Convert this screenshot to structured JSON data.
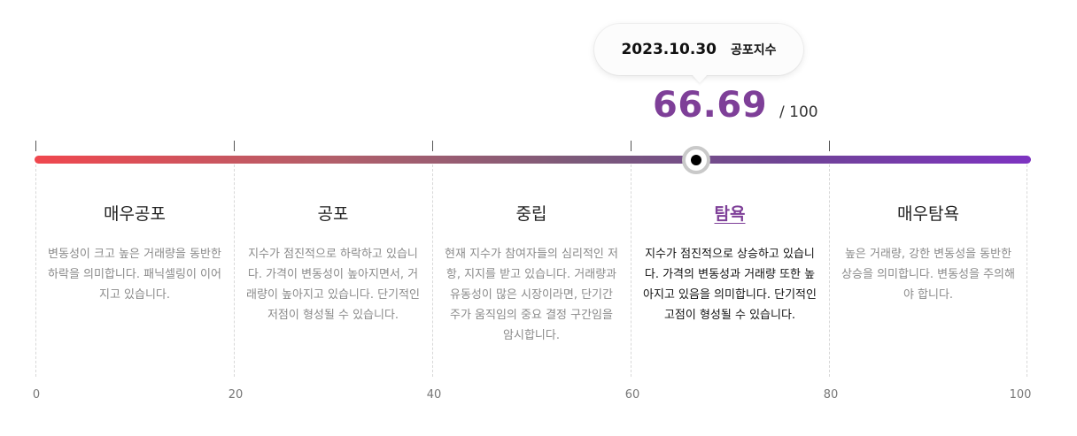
{
  "tooltip": {
    "date": "2023.10.30",
    "label": "공포지수"
  },
  "score": {
    "value": "66.69",
    "max": "/ 100",
    "value_numeric": 66.69
  },
  "gauge": {
    "colors": [
      "#f0474e",
      "#7d33c1"
    ],
    "accent": "#7e3f98",
    "zones": [
      {
        "title": "매우공포",
        "description": "변동성이 크고 높은 거래량을 동반한 하락을 의미합니다. 패닉셀링이 이어지고 있습니다."
      },
      {
        "title": "공포",
        "description": "지수가 점진적으로 하락하고 있습니다. 가격이 변동성이 높아지면서, 거래량이 높아지고 있습니다. 단기적인 저점이 형성될 수 있습니다."
      },
      {
        "title": "중립",
        "description": "현재 지수가 참여자들의 심리적인 저항, 지지를 받고 있습니다. 거래량과 유동성이 많은 시장이라면, 단기간 주가 움직임의 중요 결정 구간임을 암시합니다."
      },
      {
        "title": "탐욕",
        "description": "지수가 점진적으로 상승하고 있습니다. 가격의 변동성과 거래량 또한 높아지고 있음을 의미합니다. 단기적인 고점이 형성될 수 있습니다.",
        "active": true
      },
      {
        "title": "매우탐욕",
        "description": "높은 거래량, 강한 변동성을 동반한 상승을 의미합니다. 변동성을 주의해야 합니다."
      }
    ],
    "axis_labels": [
      "0",
      "20",
      "40",
      "60",
      "80",
      "100"
    ]
  }
}
